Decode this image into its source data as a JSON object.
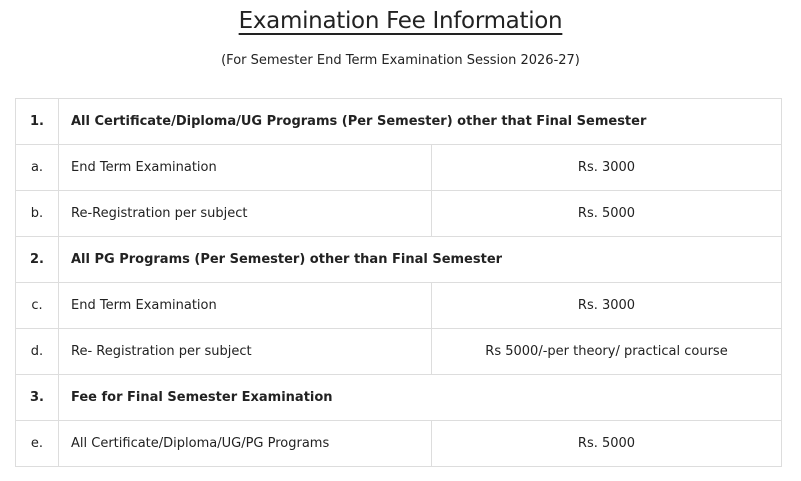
{
  "title": "Examination Fee Information",
  "subtitle": "(For Semester End Term Examination Session 2026-27)",
  "sections": [
    {
      "num": "1.",
      "heading": "All Certificate/Diploma/UG Programs (Per Semester) other that Final Semester",
      "rows": [
        {
          "num": "a.",
          "label": "End Term Examination",
          "value": "Rs. 3000"
        },
        {
          "num": "b.",
          "label": "Re-Registration per subject",
          "value": "Rs. 5000"
        }
      ]
    },
    {
      "num": "2.",
      "heading": "All PG Programs (Per Semester) other than Final Semester",
      "rows": [
        {
          "num": "c.",
          "label": "End Term Examination",
          "value": "Rs. 3000"
        },
        {
          "num": "d.",
          "label": "Re- Registration per subject",
          "value": "Rs 5000/-per theory/ practical course"
        }
      ]
    },
    {
      "num": "3.",
      "heading": "Fee for Final Semester Examination",
      "rows": [
        {
          "num": "e.",
          "label": "All Certificate/Diploma/UG/PG Programs",
          "value": "Rs. 5000"
        }
      ]
    }
  ]
}
